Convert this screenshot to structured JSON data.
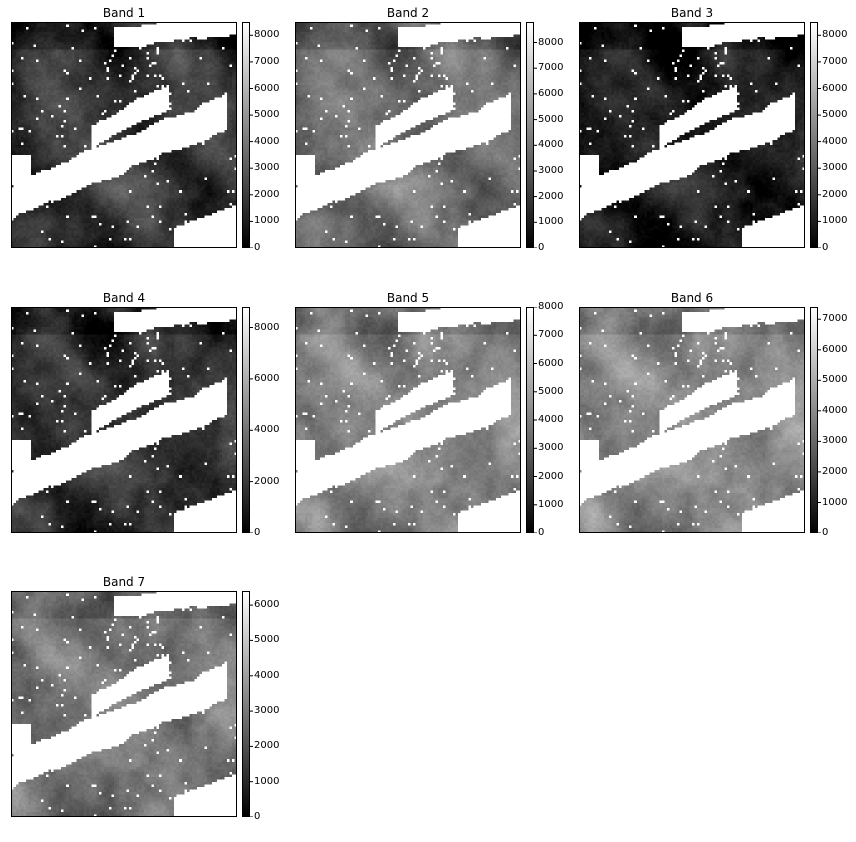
{
  "colormap": [
    "#000000",
    "#ffffff"
  ],
  "chart_data": [
    {
      "type": "heatmap",
      "title": "Band 1",
      "colorbar": {
        "min": 0,
        "max": 8500,
        "ticks": [
          0,
          1000,
          2000,
          3000,
          4000,
          5000,
          6000,
          7000,
          8000
        ]
      },
      "base_level": 0.2,
      "cloud_amount": 0.55
    },
    {
      "type": "heatmap",
      "title": "Band 2",
      "colorbar": {
        "min": 0,
        "max": 8800,
        "ticks": [
          0,
          1000,
          2000,
          3000,
          4000,
          5000,
          6000,
          7000,
          8000
        ]
      },
      "base_level": 0.42,
      "cloud_amount": 0.55
    },
    {
      "type": "heatmap",
      "title": "Band 3",
      "colorbar": {
        "min": 0,
        "max": 8500,
        "ticks": [
          0,
          1000,
          2000,
          3000,
          4000,
          5000,
          6000,
          7000,
          8000
        ]
      },
      "base_level": 0.1,
      "cloud_amount": 0.55
    },
    {
      "type": "heatmap",
      "title": "Band 4",
      "colorbar": {
        "min": 0,
        "max": 8800,
        "ticks": [
          0,
          2000,
          4000,
          6000,
          8000
        ]
      },
      "base_level": 0.18,
      "cloud_amount": 0.55
    },
    {
      "type": "heatmap",
      "title": "Band 5",
      "colorbar": {
        "min": 0,
        "max": 8000,
        "ticks": [
          0,
          1000,
          2000,
          3000,
          4000,
          5000,
          6000,
          7000,
          8000
        ]
      },
      "base_level": 0.5,
      "cloud_amount": 0.55
    },
    {
      "type": "heatmap",
      "title": "Band 6",
      "colorbar": {
        "min": 0,
        "max": 7400,
        "ticks": [
          0,
          1000,
          2000,
          3000,
          4000,
          5000,
          6000,
          7000
        ]
      },
      "base_level": 0.52,
      "cloud_amount": 0.55
    },
    {
      "type": "heatmap",
      "title": "Band 7",
      "colorbar": {
        "min": 0,
        "max": 6400,
        "ticks": [
          0,
          1000,
          2000,
          3000,
          4000,
          5000,
          6000
        ]
      },
      "base_level": 0.45,
      "cloud_amount": 0.55
    }
  ]
}
